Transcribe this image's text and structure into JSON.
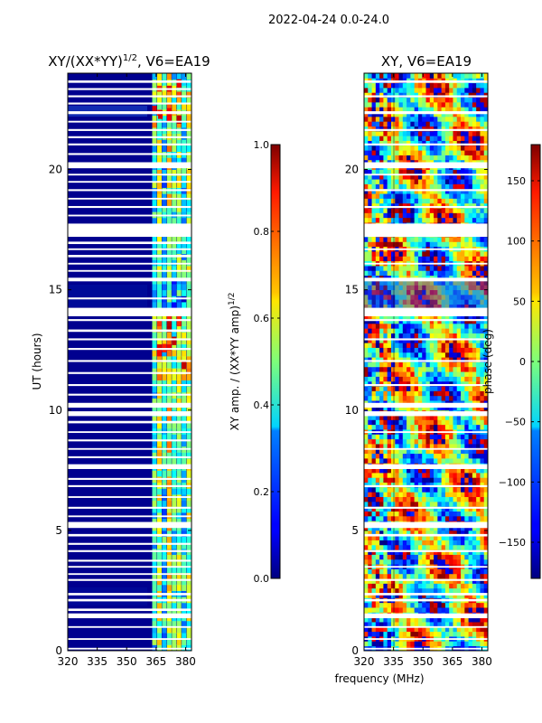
{
  "figure": {
    "suptitle": "2022-04-24 0.0-24.0",
    "xlabel": "frequency (MHz)"
  },
  "chart_data": [
    {
      "type": "heatmap",
      "title_main": "XY/(XX*YY)",
      "title_sup": "1/2",
      "title_rest": ", V6=EA19",
      "xlabel": "",
      "ylabel": "UT (hours)",
      "xlim": [
        320,
        383
      ],
      "ylim": [
        0,
        24
      ],
      "xticks": [
        320,
        335,
        350,
        365,
        380
      ],
      "yticks": [
        0,
        5,
        10,
        15,
        20
      ],
      "colorbar": {
        "label": "XY amp. / (XX*YY amp)",
        "label_sup": "1/2",
        "range": [
          0.0,
          1.0
        ],
        "ticks": [
          0.0,
          0.2,
          0.4,
          0.6,
          0.8,
          1.0
        ],
        "tick_labels": [
          "0.0",
          "0.2",
          "0.4",
          "0.6",
          "0.8",
          "1.0"
        ],
        "colormap": "jet"
      },
      "flagged_ut_ranges": [
        [
          0.05,
          0.12
        ],
        [
          0.45,
          0.52
        ],
        [
          0.95,
          1.02
        ],
        [
          1.35,
          1.55
        ],
        [
          1.65,
          1.75
        ],
        [
          2.05,
          2.15
        ],
        [
          2.3,
          2.4
        ],
        [
          2.9,
          2.98
        ],
        [
          3.15,
          3.22
        ],
        [
          3.45,
          3.52
        ],
        [
          3.7,
          3.78
        ],
        [
          4.1,
          4.18
        ],
        [
          4.4,
          4.48
        ],
        [
          4.75,
          4.85
        ],
        [
          5.1,
          5.35
        ],
        [
          5.55,
          5.62
        ],
        [
          5.9,
          5.98
        ],
        [
          6.35,
          6.42
        ],
        [
          6.8,
          6.88
        ],
        [
          7.1,
          7.18
        ],
        [
          7.55,
          7.75
        ],
        [
          8.0,
          8.08
        ],
        [
          8.35,
          8.42
        ],
        [
          8.7,
          8.78
        ],
        [
          9.05,
          9.12
        ],
        [
          9.45,
          9.55
        ],
        [
          9.75,
          9.95
        ],
        [
          10.1,
          10.3
        ],
        [
          10.6,
          10.68
        ],
        [
          11.0,
          11.08
        ],
        [
          11.5,
          11.58
        ],
        [
          12.0,
          12.08
        ],
        [
          12.5,
          12.58
        ],
        [
          12.9,
          12.98
        ],
        [
          13.25,
          13.35
        ],
        [
          13.7,
          13.78
        ],
        [
          13.9,
          14.25
        ],
        [
          14.6,
          14.68
        ],
        [
          15.35,
          15.5
        ],
        [
          15.75,
          15.82
        ],
        [
          16.05,
          16.12
        ],
        [
          16.35,
          16.45
        ],
        [
          16.65,
          16.72
        ],
        [
          16.9,
          17.0
        ],
        [
          17.2,
          17.75
        ],
        [
          18.05,
          18.12
        ],
        [
          18.4,
          18.48
        ],
        [
          18.75,
          18.82
        ],
        [
          19.1,
          19.18
        ],
        [
          19.45,
          19.52
        ],
        [
          19.75,
          19.82
        ],
        [
          20.05,
          20.3
        ],
        [
          20.6,
          20.68
        ],
        [
          21.0,
          21.08
        ],
        [
          21.3,
          21.38
        ],
        [
          21.6,
          21.68
        ],
        [
          21.95,
          22.02
        ],
        [
          22.3,
          22.42
        ],
        [
          22.7,
          22.78
        ],
        [
          23.0,
          23.08
        ],
        [
          23.3,
          23.38
        ],
        [
          23.6,
          23.7
        ]
      ]
    },
    {
      "type": "heatmap",
      "title": "XY, V6=EA19",
      "xlabel": "frequency (MHz)",
      "ylabel": "",
      "xlim": [
        320,
        383
      ],
      "ylim": [
        0,
        24
      ],
      "xticks": [
        320,
        335,
        350,
        365,
        380
      ],
      "yticks": [
        0,
        5,
        10,
        15,
        20
      ],
      "colorbar": {
        "label": "phase (deg)",
        "range": [
          -180,
          180
        ],
        "ticks": [
          -150,
          -100,
          -50,
          0,
          50,
          100,
          150
        ],
        "tick_labels": [
          "−150",
          "−100",
          "−50",
          "0",
          "50",
          "100",
          "150"
        ],
        "colormap": "jet"
      },
      "flagged_ut_ranges": [
        [
          0.05,
          0.12
        ],
        [
          0.45,
          0.52
        ],
        [
          0.95,
          1.02
        ],
        [
          1.35,
          1.55
        ],
        [
          2.05,
          2.15
        ],
        [
          2.3,
          2.4
        ],
        [
          2.9,
          2.98
        ],
        [
          3.45,
          3.52
        ],
        [
          4.1,
          4.18
        ],
        [
          4.75,
          4.85
        ],
        [
          5.1,
          5.35
        ],
        [
          5.9,
          5.98
        ],
        [
          6.8,
          6.88
        ],
        [
          7.55,
          7.75
        ],
        [
          8.35,
          8.42
        ],
        [
          9.05,
          9.12
        ],
        [
          9.75,
          9.95
        ],
        [
          10.1,
          10.3
        ],
        [
          11.0,
          11.08
        ],
        [
          12.0,
          12.08
        ],
        [
          12.9,
          12.98
        ],
        [
          13.7,
          13.78
        ],
        [
          13.9,
          14.25
        ],
        [
          15.35,
          15.5
        ],
        [
          16.05,
          16.12
        ],
        [
          16.65,
          16.72
        ],
        [
          17.2,
          17.75
        ],
        [
          18.4,
          18.48
        ],
        [
          19.1,
          19.18
        ],
        [
          19.75,
          19.82
        ],
        [
          20.05,
          20.3
        ],
        [
          21.0,
          21.08
        ],
        [
          21.6,
          21.68
        ],
        [
          22.3,
          22.42
        ],
        [
          23.0,
          23.08
        ],
        [
          23.6,
          23.7
        ]
      ]
    }
  ]
}
